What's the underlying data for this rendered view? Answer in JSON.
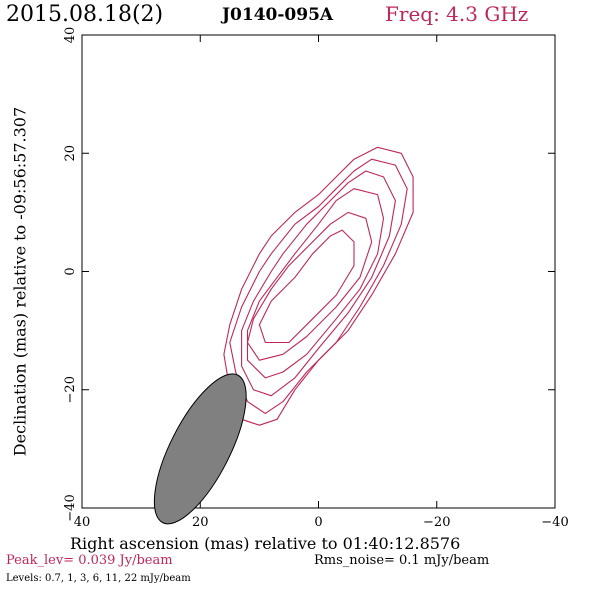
{
  "header": {
    "date": "2015.08.18(2)",
    "source": "J0140-095A",
    "freq": "Freq: 4.3 GHz"
  },
  "footer": {
    "peak": "Peak_lev=  0.039 Jy/beam",
    "rms": "Rms_noise=  0.1 mJy/beam",
    "levels": "Levels: 0.7,   1,   3,   6,  11,  22 mJy/beam"
  },
  "colors": {
    "contour": "#c0265a",
    "beam_fill": "#808080",
    "accent_text": "#c0265a",
    "axis": "#000000"
  },
  "chart_data": {
    "type": "contour",
    "xlabel": "Right ascension (mas) relative to 01:40:12.8576",
    "ylabel": "Declination (mas) relative to -09:56:57.307",
    "xlim": [
      40,
      -40
    ],
    "ylim": [
      -40,
      40
    ],
    "xticks": [
      "40",
      "20",
      "0",
      "−20",
      "−40"
    ],
    "yticks": [
      "−40",
      "−20",
      "0",
      "20",
      "40"
    ],
    "xtick_values": [
      40,
      20,
      0,
      -20,
      -40
    ],
    "ytick_values": [
      -40,
      -20,
      0,
      20,
      40
    ],
    "levels_mJy": [
      0.7,
      1,
      3,
      6,
      11,
      22
    ],
    "contours": [
      {
        "level": 0.7,
        "points": [
          [
            -10,
            21
          ],
          [
            -14,
            20
          ],
          [
            -16,
            16
          ],
          [
            -16,
            10
          ],
          [
            -13,
            3
          ],
          [
            -9,
            -4
          ],
          [
            -5,
            -10
          ],
          [
            0,
            -15
          ],
          [
            4,
            -20
          ],
          [
            7,
            -25
          ],
          [
            10,
            -26
          ],
          [
            13,
            -25
          ],
          [
            15,
            -20
          ],
          [
            16,
            -14
          ],
          [
            15,
            -9
          ],
          [
            13,
            -3
          ],
          [
            10,
            3
          ],
          [
            8,
            6
          ],
          [
            4,
            10
          ],
          [
            0,
            13
          ],
          [
            -3,
            16
          ],
          [
            -6,
            19
          ],
          [
            -10,
            21
          ]
        ]
      },
      {
        "level": 1,
        "points": [
          [
            -9,
            19
          ],
          [
            -13,
            18
          ],
          [
            -15,
            14
          ],
          [
            -14,
            8
          ],
          [
            -11,
            1
          ],
          [
            -7,
            -6
          ],
          [
            -3,
            -12
          ],
          [
            2,
            -17
          ],
          [
            6,
            -22
          ],
          [
            9,
            -24
          ],
          [
            12,
            -22
          ],
          [
            14,
            -17
          ],
          [
            15,
            -12
          ],
          [
            13,
            -6
          ],
          [
            10,
            0
          ],
          [
            8,
            3
          ],
          [
            4,
            8
          ],
          [
            0,
            11
          ],
          [
            -3,
            14
          ],
          [
            -6,
            17
          ],
          [
            -9,
            19
          ]
        ]
      },
      {
        "level": 3,
        "points": [
          [
            -8,
            17
          ],
          [
            -11,
            16
          ],
          [
            -13,
            12
          ],
          [
            -12,
            6
          ],
          [
            -9,
            -1
          ],
          [
            -5,
            -7
          ],
          [
            0,
            -13
          ],
          [
            4,
            -18
          ],
          [
            8,
            -21
          ],
          [
            11,
            -20
          ],
          [
            13,
            -16
          ],
          [
            13,
            -10
          ],
          [
            11,
            -5
          ],
          [
            8,
            0
          ],
          [
            6,
            3
          ],
          [
            2,
            8
          ],
          [
            -2,
            12
          ],
          [
            -5,
            15
          ],
          [
            -8,
            17
          ]
        ]
      },
      {
        "level": 6,
        "points": [
          [
            -6,
            14
          ],
          [
            -10,
            13
          ],
          [
            -11,
            9
          ],
          [
            -10,
            3
          ],
          [
            -7,
            -3
          ],
          [
            -3,
            -8
          ],
          [
            2,
            -14
          ],
          [
            6,
            -17
          ],
          [
            9,
            -18
          ],
          [
            12,
            -15
          ],
          [
            12,
            -10
          ],
          [
            10,
            -5
          ],
          [
            7,
            -1
          ],
          [
            4,
            3
          ],
          [
            0,
            8
          ],
          [
            -3,
            12
          ],
          [
            -6,
            14
          ]
        ]
      },
      {
        "level": 11,
        "points": [
          [
            -5,
            10
          ],
          [
            -8,
            9
          ],
          [
            -9,
            5
          ],
          [
            -7,
            -1
          ],
          [
            -3,
            -6
          ],
          [
            2,
            -11
          ],
          [
            6,
            -14
          ],
          [
            10,
            -15
          ],
          [
            12,
            -12
          ],
          [
            11,
            -8
          ],
          [
            8,
            -3
          ],
          [
            5,
            1
          ],
          [
            1,
            5
          ],
          [
            -2,
            8
          ],
          [
            -5,
            10
          ]
        ]
      },
      {
        "level": 22,
        "points": [
          [
            -4,
            7
          ],
          [
            -6,
            5
          ],
          [
            -6,
            1
          ],
          [
            -3,
            -4
          ],
          [
            1,
            -8
          ],
          [
            5,
            -12
          ],
          [
            9,
            -12
          ],
          [
            10,
            -9
          ],
          [
            8,
            -5
          ],
          [
            4,
            -1
          ],
          [
            1,
            3
          ],
          [
            -2,
            6
          ],
          [
            -4,
            7
          ]
        ]
      }
    ],
    "beam": {
      "center": [
        20,
        -30
      ],
      "major": 14,
      "minor": 5,
      "pa_deg": 27
    },
    "grid": false
  }
}
